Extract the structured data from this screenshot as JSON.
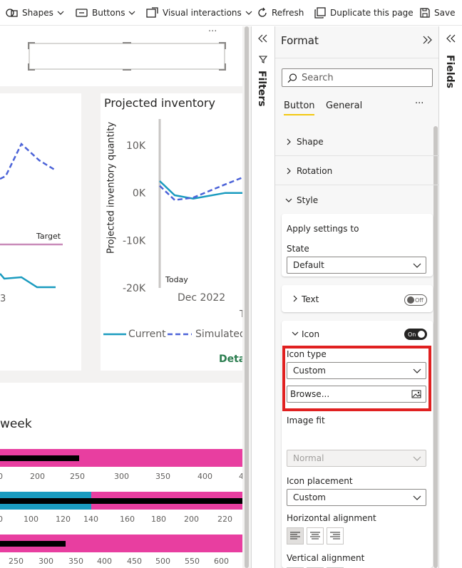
{
  "toolbar": {
    "shapes": "Shapes",
    "buttons": "Buttons",
    "visual_interactions": "Visual interactions",
    "refresh": "Refresh",
    "duplicate": "Duplicate this page",
    "save": "Save"
  },
  "canvas": {
    "more": "···",
    "left_chart": {
      "target_label": "Target",
      "partial_tick": "3"
    },
    "projected": {
      "title": "Projected inventory",
      "ylabel": "Projected inventory quantity",
      "yticks": [
        "10K",
        "0K",
        "-10K",
        "-20K"
      ],
      "today": "Today",
      "xtick": "Dec 2022",
      "x_partial": "T",
      "legend": [
        "Current",
        "Simulated"
      ],
      "details": "Deta"
    },
    "bottom": {
      "week_label": "week",
      "axis1": [
        "0",
        "200",
        "250",
        "300",
        "350",
        "400",
        "4"
      ],
      "axis2": [
        "0",
        "100",
        "120",
        "140",
        "160",
        "180",
        "200",
        "220"
      ],
      "axis3": [
        "250",
        "300",
        "350",
        "400",
        "450",
        "500",
        "550",
        "600"
      ]
    }
  },
  "filters": {
    "label": "Filters"
  },
  "fields": {
    "label": "Fields"
  },
  "format": {
    "title": "Format",
    "search_placeholder": "Search",
    "tabs": [
      "Button",
      "General"
    ],
    "more": "···",
    "sections": {
      "shape": "Shape",
      "rotation": "Rotation",
      "style": "Style"
    },
    "apply_settings": "Apply settings to",
    "state_label": "State",
    "state_value": "Default",
    "text_label": "Text",
    "text_toggle": "Off",
    "icon_label": "Icon",
    "icon_toggle": "On",
    "icon_type_label": "Icon type",
    "icon_type_value": "Custom",
    "browse": "Browse...",
    "image_fit_label": "Image fit",
    "image_fit_value": "Normal",
    "icon_placement_label": "Icon placement",
    "icon_placement_value": "Custom",
    "horizontal_alignment": "Horizontal alignment",
    "vertical_alignment": "Vertical alignment"
  },
  "colors": {
    "accent": "#f2c811",
    "highlight": "#e02020",
    "teal": "#1a9bbf",
    "dashed": "#4c63d8",
    "pink": "#e83ea0",
    "target": "#c98bb9",
    "green": "#2b7d4f"
  },
  "chart_data": [
    {
      "type": "line",
      "title": "Projected inventory",
      "ylabel": "Projected inventory quantity",
      "xlabel": "",
      "ylim": [
        -20000,
        10000
      ],
      "yticks": [
        10000,
        0,
        -10000,
        -20000
      ],
      "x_tick_labels": [
        "Dec 2022"
      ],
      "series": [
        {
          "name": "Current",
          "values": [
            2500,
            -500,
            -1200,
            0,
            0
          ]
        },
        {
          "name": "Simulated",
          "values": [
            1500,
            -1500,
            -1000,
            1800,
            4000
          ]
        }
      ],
      "annotations": [
        "Today"
      ]
    }
  ]
}
